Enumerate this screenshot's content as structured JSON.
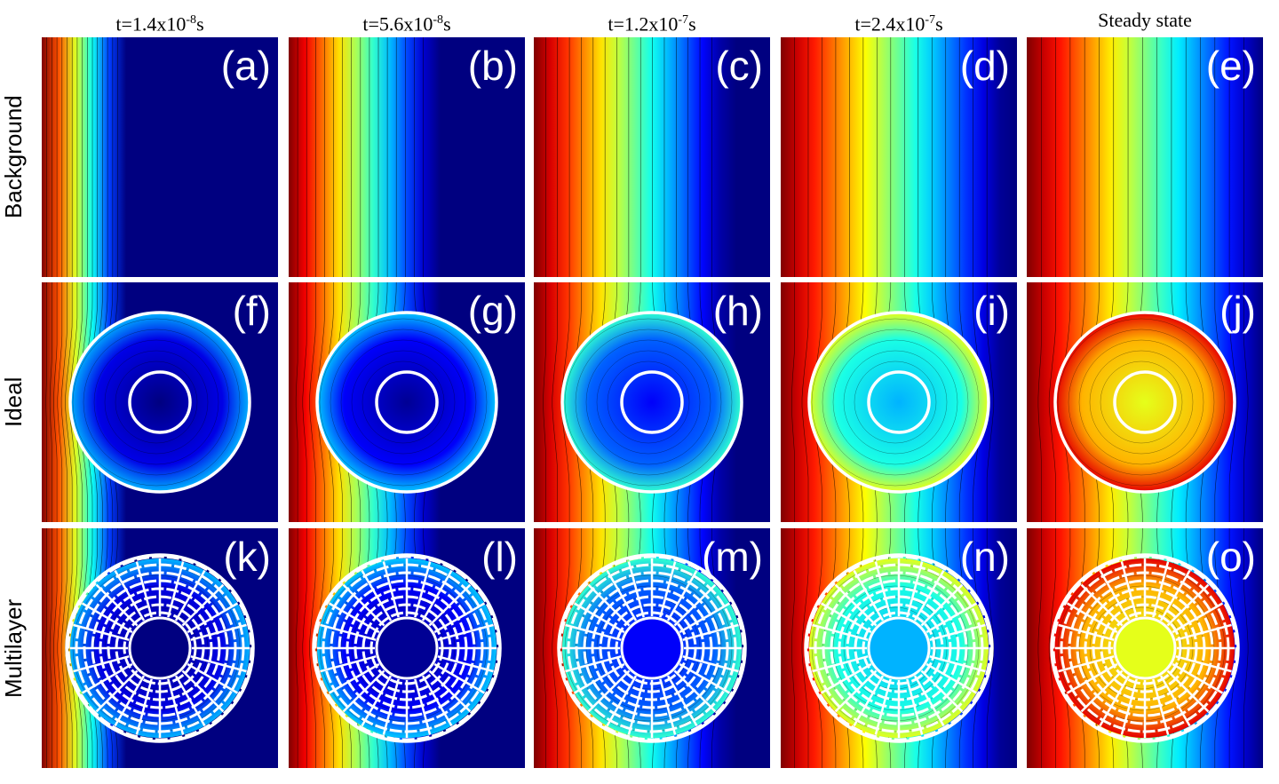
{
  "columns": [
    {
      "time_prefix": "t=1.4x10",
      "time_exp": "-8",
      "time_suffix": "s"
    },
    {
      "time_prefix": "t=5.6x10",
      "time_exp": "-8",
      "time_suffix": "s"
    },
    {
      "time_prefix": "t=1.2x10",
      "time_exp": "-7",
      "time_suffix": "s"
    },
    {
      "time_prefix": "t=2.4x10",
      "time_exp": "-7",
      "time_suffix": "s"
    },
    {
      "title": "Steady state"
    }
  ],
  "rows": [
    {
      "label": "Background",
      "kind": "background",
      "panels": [
        "(a)",
        "(b)",
        "(c)",
        "(d)",
        "(e)"
      ]
    },
    {
      "label": "Ideal",
      "kind": "ideal",
      "panels": [
        "(f)",
        "(g)",
        "(h)",
        "(i)",
        "(j)"
      ]
    },
    {
      "label": "Multilayer",
      "kind": "multilayer",
      "panels": [
        "(k)",
        "(l)",
        "(m)",
        "(n)",
        "(o)"
      ]
    }
  ],
  "colormap": "jet",
  "diffusion_front_reach": [
    0.35,
    0.62,
    0.82,
    0.95,
    1.0
  ],
  "core_fill_level": [
    0.0,
    0.02,
    0.12,
    0.3,
    0.6
  ],
  "colors": {
    "background": "#ffffff",
    "cloak_outline": "#ffffff",
    "isotherm": "#000000"
  }
}
